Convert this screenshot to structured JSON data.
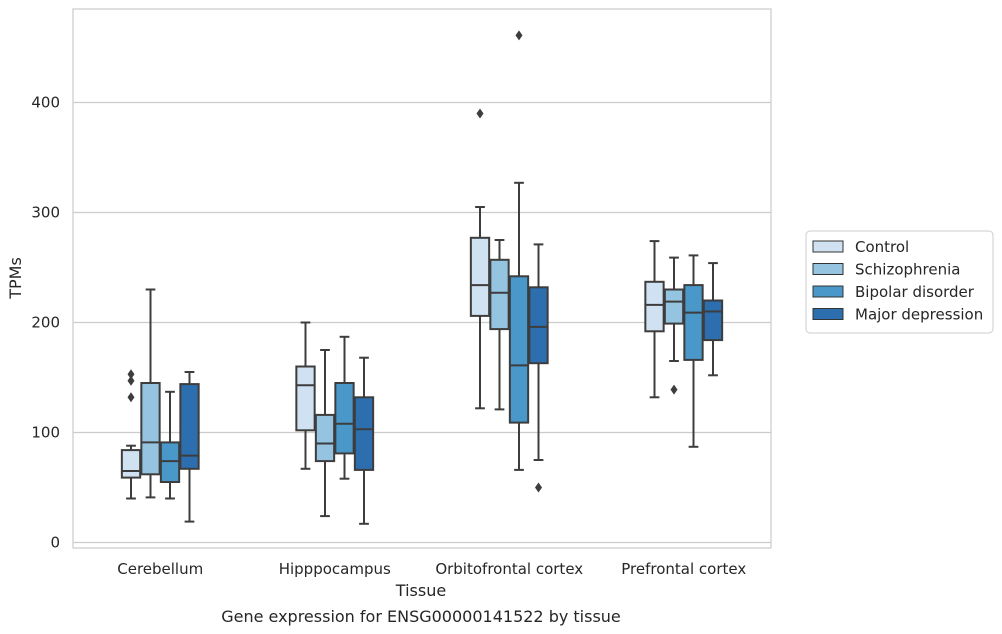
{
  "chart_data": {
    "type": "box",
    "xlabel": "Tissue",
    "ylabel": "TPMs",
    "caption": "Gene expression for ENSG00000141522 by tissue",
    "ylim": [
      -5,
      485
    ],
    "yticks": [
      0,
      100,
      200,
      300,
      400
    ],
    "grid": "horizontal",
    "legend_position": "right",
    "categories": [
      "Cerebellum",
      "Hipppocampus",
      "Orbitofrontal cortex",
      "Prefrontal cortex"
    ],
    "series": [
      {
        "name": "Control",
        "color": "#d0e1f2",
        "boxes": [
          {
            "whislo": 40,
            "q1": 59,
            "med": 65,
            "q3": 84,
            "whishi": 88,
            "fliers": [
              132,
              147,
              153
            ]
          },
          {
            "whislo": 67,
            "q1": 102,
            "med": 143,
            "q3": 160,
            "whishi": 200,
            "fliers": []
          },
          {
            "whislo": 122,
            "q1": 206,
            "med": 234,
            "q3": 277,
            "whishi": 305,
            "fliers": [
              390
            ]
          },
          {
            "whislo": 132,
            "q1": 192,
            "med": 216,
            "q3": 237,
            "whishi": 274,
            "fliers": []
          }
        ]
      },
      {
        "name": "Schizophrenia",
        "color": "#94c4df",
        "boxes": [
          {
            "whislo": 41,
            "q1": 62,
            "med": 91,
            "q3": 145,
            "whishi": 230,
            "fliers": []
          },
          {
            "whislo": 24,
            "q1": 74,
            "med": 90,
            "q3": 116,
            "whishi": 175,
            "fliers": []
          },
          {
            "whislo": 121,
            "q1": 194,
            "med": 227,
            "q3": 257,
            "whishi": 275,
            "fliers": []
          },
          {
            "whislo": 165,
            "q1": 199,
            "med": 219,
            "q3": 230,
            "whishi": 259,
            "fliers": [
              139
            ]
          }
        ]
      },
      {
        "name": "Bipolar disorder",
        "color": "#4a98c9",
        "boxes": [
          {
            "whislo": 40,
            "q1": 55,
            "med": 74,
            "q3": 91,
            "whishi": 137,
            "fliers": []
          },
          {
            "whislo": 58,
            "q1": 81,
            "med": 108,
            "q3": 145,
            "whishi": 187,
            "fliers": []
          },
          {
            "whislo": 66,
            "q1": 109,
            "med": 161,
            "q3": 242,
            "whishi": 327,
            "fliers": [
              461
            ]
          },
          {
            "whislo": 87,
            "q1": 166,
            "med": 209,
            "q3": 234,
            "whishi": 261,
            "fliers": []
          }
        ]
      },
      {
        "name": "Major depression",
        "color": "#2c6eae",
        "boxes": [
          {
            "whislo": 19,
            "q1": 67,
            "med": 79,
            "q3": 144,
            "whishi": 155,
            "fliers": []
          },
          {
            "whislo": 17,
            "q1": 66,
            "med": 103,
            "q3": 132,
            "whishi": 168,
            "fliers": []
          },
          {
            "whislo": 75,
            "q1": 163,
            "med": 196,
            "q3": 232,
            "whishi": 271,
            "fliers": [
              50
            ]
          },
          {
            "whislo": 152,
            "q1": 184,
            "med": 210,
            "q3": 220,
            "whishi": 254,
            "fliers": []
          }
        ]
      }
    ]
  }
}
